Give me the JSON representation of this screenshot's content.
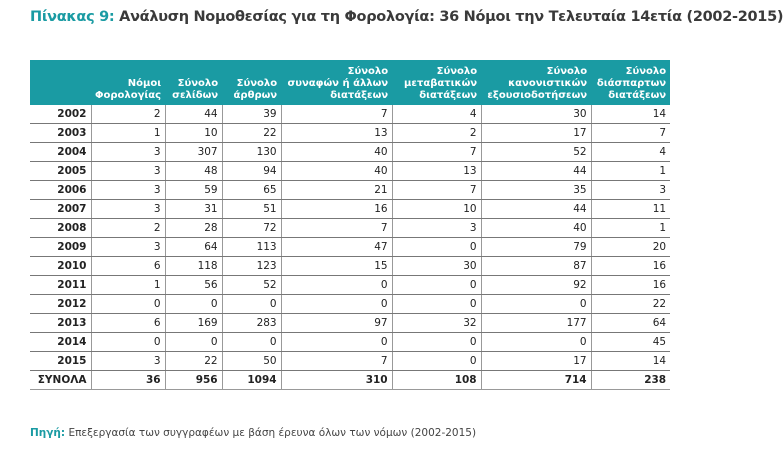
{
  "title": {
    "label": "Πίνακας 9:",
    "text": "Ανάλυση Νομοθεσίας για τη Φορολογία: 36 Νόμοι την Τελευταία 14ετία (2002-2015)"
  },
  "table": {
    "headers": [
      [
        "",
        ""
      ],
      [
        "Νόμοι",
        "Φορολογίας"
      ],
      [
        "Σύνολο",
        "σελίδων"
      ],
      [
        "Σύνολο",
        "άρθρων"
      ],
      [
        "Σύνολο",
        "συναφών ή άλλων",
        "διατάξεων"
      ],
      [
        "Σύνολο",
        "μεταβατικών",
        "διατάξεων"
      ],
      [
        "Σύνολο",
        "κανονιστικών",
        "εξουσιοδοτήσεων"
      ],
      [
        "Σύνολο",
        "διάσπαρτων",
        "διατάξεων"
      ]
    ],
    "rows": [
      [
        "2002",
        "2",
        "44",
        "39",
        "7",
        "4",
        "30",
        "14"
      ],
      [
        "2003",
        "1",
        "10",
        "22",
        "13",
        "2",
        "17",
        "7"
      ],
      [
        "2004",
        "3",
        "307",
        "130",
        "40",
        "7",
        "52",
        "4"
      ],
      [
        "2005",
        "3",
        "48",
        "94",
        "40",
        "13",
        "44",
        "1"
      ],
      [
        "2006",
        "3",
        "59",
        "65",
        "21",
        "7",
        "35",
        "3"
      ],
      [
        "2007",
        "3",
        "31",
        "51",
        "16",
        "10",
        "44",
        "11"
      ],
      [
        "2008",
        "2",
        "28",
        "72",
        "7",
        "3",
        "40",
        "1"
      ],
      [
        "2009",
        "3",
        "64",
        "113",
        "47",
        "0",
        "79",
        "20"
      ],
      [
        "2010",
        "6",
        "118",
        "123",
        "15",
        "30",
        "87",
        "16"
      ],
      [
        "2011",
        "1",
        "56",
        "52",
        "0",
        "0",
        "92",
        "16"
      ],
      [
        "2012",
        "0",
        "0",
        "0",
        "0",
        "0",
        "0",
        "22"
      ],
      [
        "2013",
        "6",
        "169",
        "283",
        "97",
        "32",
        "177",
        "64"
      ],
      [
        "2014",
        "0",
        "0",
        "0",
        "0",
        "0",
        "0",
        "45"
      ],
      [
        "2015",
        "3",
        "22",
        "50",
        "7",
        "0",
        "17",
        "14"
      ]
    ],
    "total": [
      "ΣΥΝΟΛΑ",
      "36",
      "956",
      "1094",
      "310",
      "108",
      "714",
      "238"
    ]
  },
  "source": {
    "label": "Πηγή:",
    "text": "Επεξεργασία των συγγραφέων με βάση έρευνα όλων των νόμων (2002-2015)"
  },
  "colors": {
    "accent": "#1a9ba3"
  }
}
